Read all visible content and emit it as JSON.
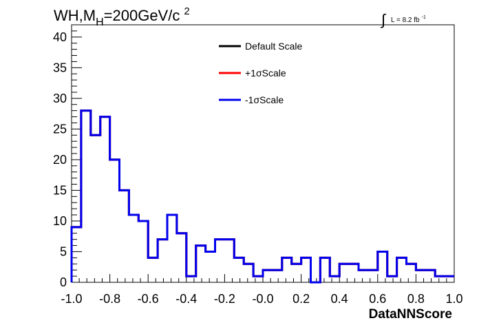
{
  "chart_data": {
    "type": "histogram",
    "title_main": "WH,M",
    "title_sub": "H",
    "title_rest": "=200GeV/c",
    "title_sup": "2",
    "lumi_integral": "∫",
    "lumi_text": "L = 8.2 fb",
    "lumi_sup": "-1",
    "xlabel": "DataNNScore",
    "ylabel": "",
    "xlim": [
      -1.0,
      1.0
    ],
    "ylim": [
      0,
      42
    ],
    "xticks": [
      "-1.0",
      "-0.8",
      "-0.6",
      "-0.4",
      "-0.2",
      "-0.0",
      "0.2",
      "0.4",
      "0.6",
      "0.8",
      "1.0"
    ],
    "yticks": [
      "0",
      "5",
      "10",
      "15",
      "20",
      "25",
      "30",
      "35",
      "40"
    ],
    "grid": false,
    "legend_position": "top-center",
    "bin_edges": [
      -1.0,
      -0.95,
      -0.9,
      -0.85,
      -0.8,
      -0.75,
      -0.7,
      -0.65,
      -0.6,
      -0.55,
      -0.5,
      -0.45,
      -0.4,
      -0.35,
      -0.3,
      -0.25,
      -0.2,
      -0.15,
      -0.1,
      -0.05,
      0.0,
      0.05,
      0.1,
      0.15,
      0.2,
      0.25,
      0.3,
      0.35,
      0.4,
      0.45,
      0.5,
      0.55,
      0.6,
      0.65,
      0.7,
      0.75,
      0.8,
      0.85,
      0.9,
      0.95,
      1.0
    ],
    "series": [
      {
        "name": "Default Scale",
        "color": "#000000",
        "values": [
          9,
          28,
          24,
          27,
          20,
          15,
          11,
          10,
          4,
          7,
          11,
          8,
          1,
          6,
          5,
          7,
          7,
          4,
          3,
          1,
          2,
          2,
          4,
          3,
          4,
          0,
          4,
          1,
          3,
          3,
          2,
          2,
          5,
          1,
          4,
          3,
          2,
          2,
          1,
          1
        ]
      },
      {
        "name": "+1σScale",
        "color": "#ff0000",
        "values": [
          9,
          28,
          24,
          27,
          20,
          15,
          11,
          10,
          4,
          7,
          11,
          8,
          1,
          6,
          5,
          7,
          7,
          4,
          3,
          1,
          2,
          2,
          4,
          3,
          4,
          0,
          4,
          1,
          3,
          3,
          2,
          2,
          5,
          1,
          4,
          3,
          2,
          2,
          1,
          1
        ]
      },
      {
        "name": "-1σScale",
        "color": "#0000ee",
        "values": [
          9,
          28,
          24,
          27,
          20,
          15,
          11,
          10,
          4,
          7,
          11,
          8,
          1,
          6,
          5,
          7,
          7,
          4,
          3,
          1,
          2,
          2,
          4,
          3,
          4,
          0,
          4,
          1,
          3,
          3,
          2,
          2,
          5,
          1,
          4,
          3,
          2,
          2,
          1,
          1
        ]
      }
    ]
  }
}
